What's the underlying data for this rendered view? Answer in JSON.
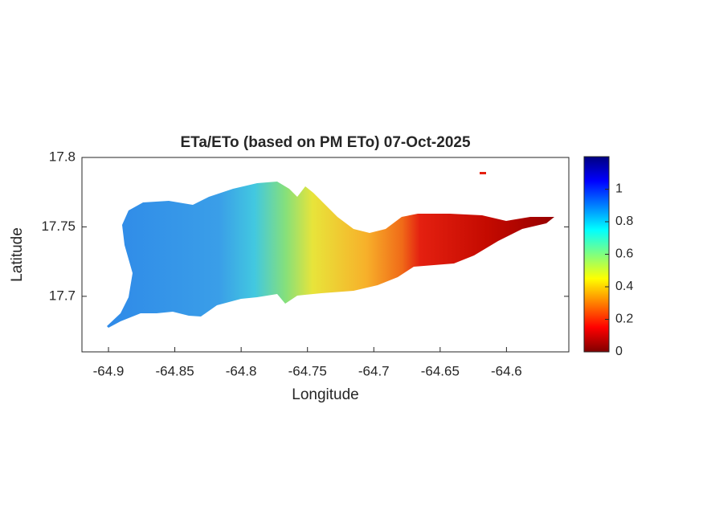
{
  "chart_data": {
    "type": "map",
    "title": "ETa/ETo (based on PM ETo) 07-Oct-2025",
    "xlabel": "Longitude",
    "ylabel": "Latitude",
    "xlim": [
      -64.92,
      -64.553
    ],
    "xticks": [
      -64.9,
      -64.85,
      -64.8,
      -64.75,
      -64.7,
      -64.65,
      -64.6
    ],
    "ylim": [
      17.66,
      17.8
    ],
    "yticks": [
      17.7,
      17.75,
      17.8
    ],
    "colormap": "jet",
    "clim": [
      0,
      1.2
    ],
    "cticks": [
      0,
      0.2,
      0.4,
      0.6,
      0.8,
      1
    ]
  }
}
